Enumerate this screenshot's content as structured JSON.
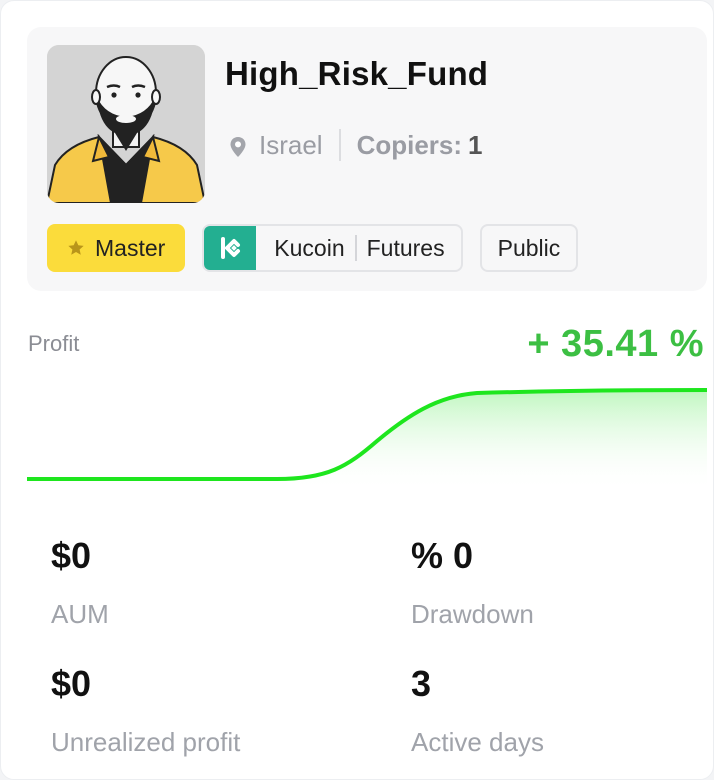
{
  "trader": {
    "name": "High_Risk_Fund",
    "country": "Israel",
    "copiers_label": "Copiers:",
    "copiers_value": "1"
  },
  "tags": {
    "level": "Master",
    "exchange": "Kucoin",
    "market": "Futures",
    "visibility": "Public"
  },
  "profit": {
    "label": "Profit",
    "value": "+ 35.41 %"
  },
  "stats": {
    "aum_value": "$0",
    "aum_label": "AUM",
    "drawdown_value": "% 0",
    "drawdown_label": "Drawdown",
    "unrealized_value": "$0",
    "unrealized_label": "Unrealized profit",
    "active_days_value": "3",
    "active_days_label": "Active days"
  },
  "colors": {
    "accent_green": "#3cbf43",
    "line_green": "#1ee61e",
    "master_yellow": "#fbdc3b",
    "kucoin_green": "#23af91"
  },
  "icons": {
    "location": "location-pin-icon",
    "star": "star-icon",
    "exchange_logo": "kucoin-logo-icon"
  }
}
